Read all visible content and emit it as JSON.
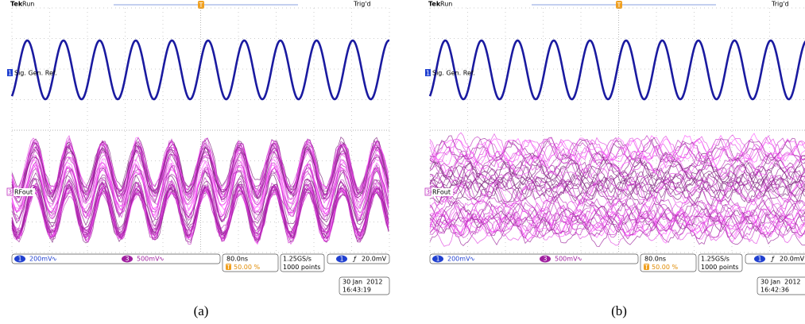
{
  "panels": [
    {
      "header": {
        "brand": "Tek",
        "status": "Run",
        "trigger_marker": "T",
        "trigger": "Trig'd"
      },
      "channel1": {
        "number": "1",
        "label": "Sig. Gen. Ref."
      },
      "channel3": {
        "number": "3",
        "label": "RFout"
      },
      "status_bar": {
        "ch1_number": "1",
        "ch1_scale": "200mV",
        "ch1_coupling": "∿",
        "ch3_number": "3",
        "ch3_scale": "500mV",
        "ch3_coupling": "∿",
        "timebase": "80.0ns",
        "trigger_position_marker": "T",
        "trigger_position": "50.00 %",
        "sample_rate": "1.25GS/s",
        "record_length": "1000 points",
        "trigger_source": "1",
        "trigger_slope": "ƒ",
        "trigger_level": "20.0mV"
      },
      "date": "30 Jan  2012",
      "time": "16:43:19",
      "caption": "(a)"
    },
    {
      "header": {
        "brand": "Tek",
        "status": "Run",
        "trigger_marker": "T",
        "trigger": "Trig'd"
      },
      "channel1": {
        "number": "1",
        "label": "Sig. Gen. Ref."
      },
      "channel3": {
        "number": "3",
        "label": "RFout"
      },
      "status_bar": {
        "ch1_number": "1",
        "ch1_scale": "200mV",
        "ch1_coupling": "∿",
        "ch3_number": "3",
        "ch3_scale": "500mV",
        "ch3_coupling": "∿",
        "timebase": "80.0ns",
        "trigger_position_marker": "T",
        "trigger_position": "50.00 %",
        "sample_rate": "1.25GS/s",
        "record_length": "1000 points",
        "trigger_source": "1",
        "trigger_slope": "ƒ",
        "trigger_level": "20.0mV"
      },
      "date": "30 Jan  2012",
      "time": "16:42:36",
      "caption": "(b)"
    }
  ]
}
